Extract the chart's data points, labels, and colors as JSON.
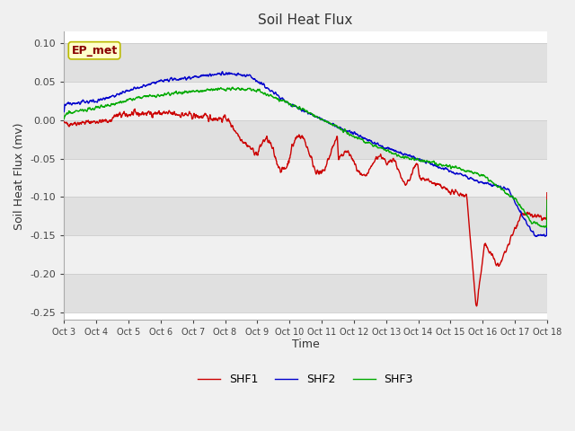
{
  "title": "Soil Heat Flux",
  "ylabel": "Soil Heat Flux (mv)",
  "xlabel": "Time",
  "annotation": "EP_met",
  "ylim": [
    -0.26,
    0.115
  ],
  "xlim": [
    0,
    15
  ],
  "yticks": [
    0.1,
    0.05,
    0.0,
    -0.05,
    -0.1,
    -0.15,
    -0.2,
    -0.25
  ],
  "xtick_labels": [
    "Oct 3",
    "Oct 4",
    "Oct 5",
    "Oct 6",
    "Oct 7",
    "Oct 8",
    "Oct 9",
    "Oct 10",
    "Oct 11",
    "Oct 12",
    "Oct 13",
    "Oct 14",
    "Oct 15",
    "Oct 16",
    "Oct 17",
    "Oct 18"
  ],
  "line_colors": {
    "SHF1": "#cc0000",
    "SHF2": "#0000cc",
    "SHF3": "#00aa00"
  },
  "fig_bg_color": "#f0f0f0",
  "plot_bg_color": "#ffffff",
  "band_light": "#f0f0f0",
  "band_dark": "#e0e0e0",
  "title_fontsize": 11,
  "axis_label_fontsize": 9,
  "tick_fontsize": 8,
  "legend_fontsize": 9
}
